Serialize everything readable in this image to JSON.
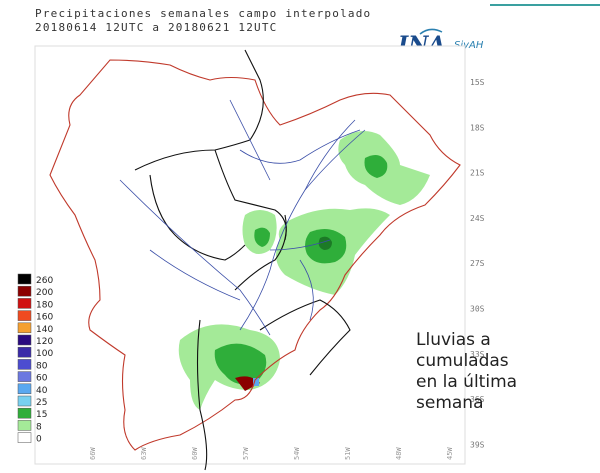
{
  "title": {
    "line1": "Precipitaciones semanales campo interpolado",
    "line2": "20180614 12UTC a 20180621 12UTC"
  },
  "logo": {
    "name": "INA",
    "system": "SiyAH"
  },
  "latitude_labels": [
    "15S",
    "18S",
    "21S",
    "24S",
    "27S",
    "30S",
    "33S",
    "36S",
    "39S"
  ],
  "longitude_labels": [
    "66W",
    "63W",
    "60W",
    "57W",
    "54W",
    "51W",
    "48W",
    "45W"
  ],
  "legend": [
    {
      "label": "260",
      "color": "#000000"
    },
    {
      "label": "200",
      "color": "#8b0000"
    },
    {
      "label": "180",
      "color": "#d01010"
    },
    {
      "label": "160",
      "color": "#f04a20"
    },
    {
      "label": "140",
      "color": "#f5a030"
    },
    {
      "label": "120",
      "color": "#2a0a80"
    },
    {
      "label": "100",
      "color": "#3a2aa8"
    },
    {
      "label": "80",
      "color": "#4c4cd0"
    },
    {
      "label": "60",
      "color": "#6c78e0"
    },
    {
      "label": "40",
      "color": "#5aa8f0"
    },
    {
      "label": "25",
      "color": "#78d0f0"
    },
    {
      "label": "15",
      "color": "#2fae3a"
    },
    {
      "label": "8",
      "color": "#a4ea98"
    },
    {
      "label": "0",
      "color": "#ffffff"
    }
  ],
  "annotation": {
    "lines": [
      "Lluvias a",
      "cumuladas",
      "en la última",
      "semana"
    ]
  }
}
